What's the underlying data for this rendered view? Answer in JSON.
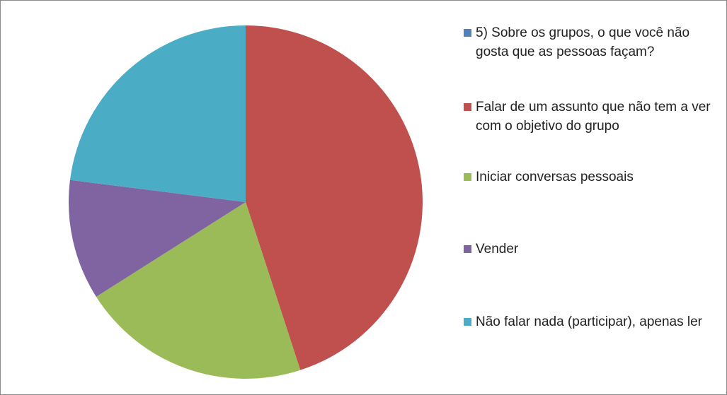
{
  "chart_data": {
    "type": "pie",
    "categories": [
      "5) Sobre os grupos, o que você não gosta que as pessoas façam?",
      "Falar de um assunto que não tem a ver com o objetivo do grupo",
      "Iniciar conversas pessoais",
      "Vender",
      "Não falar nada (participar), apenas ler"
    ],
    "values": [
      0,
      45,
      21,
      11,
      23
    ],
    "colors": [
      "#4f81bd",
      "#c0504d",
      "#9bbb59",
      "#8064a2",
      "#4bacc6"
    ],
    "legend": "right"
  }
}
